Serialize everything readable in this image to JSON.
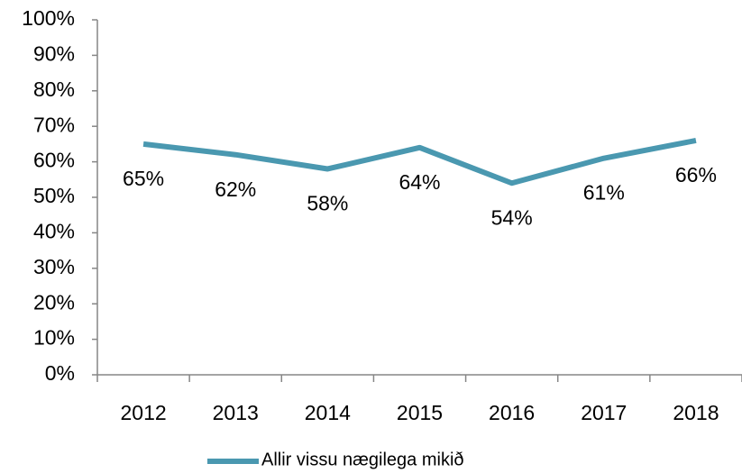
{
  "chart_data": {
    "type": "line",
    "categories": [
      "2012",
      "2013",
      "2014",
      "2015",
      "2016",
      "2017",
      "2018"
    ],
    "series": [
      {
        "name": "Allir vissu nægilega mikið",
        "color": "#4a98b0",
        "values": [
          65,
          62,
          58,
          64,
          54,
          61,
          66
        ],
        "value_labels": [
          "65%",
          "62%",
          "58%",
          "64%",
          "54%",
          "61%",
          "66%"
        ]
      }
    ],
    "ylim": [
      0,
      100
    ],
    "yticks": [
      {
        "value": 0,
        "label": "0%"
      },
      {
        "value": 10,
        "label": "10%"
      },
      {
        "value": 20,
        "label": "20%"
      },
      {
        "value": 30,
        "label": "30%"
      },
      {
        "value": 40,
        "label": "40%"
      },
      {
        "value": 50,
        "label": "50%"
      },
      {
        "value": 60,
        "label": "60%"
      },
      {
        "value": 70,
        "label": "70%"
      },
      {
        "value": 80,
        "label": "80%"
      },
      {
        "value": 90,
        "label": "90%"
      },
      {
        "value": 100,
        "label": "100%"
      }
    ],
    "legend": "bottom"
  }
}
